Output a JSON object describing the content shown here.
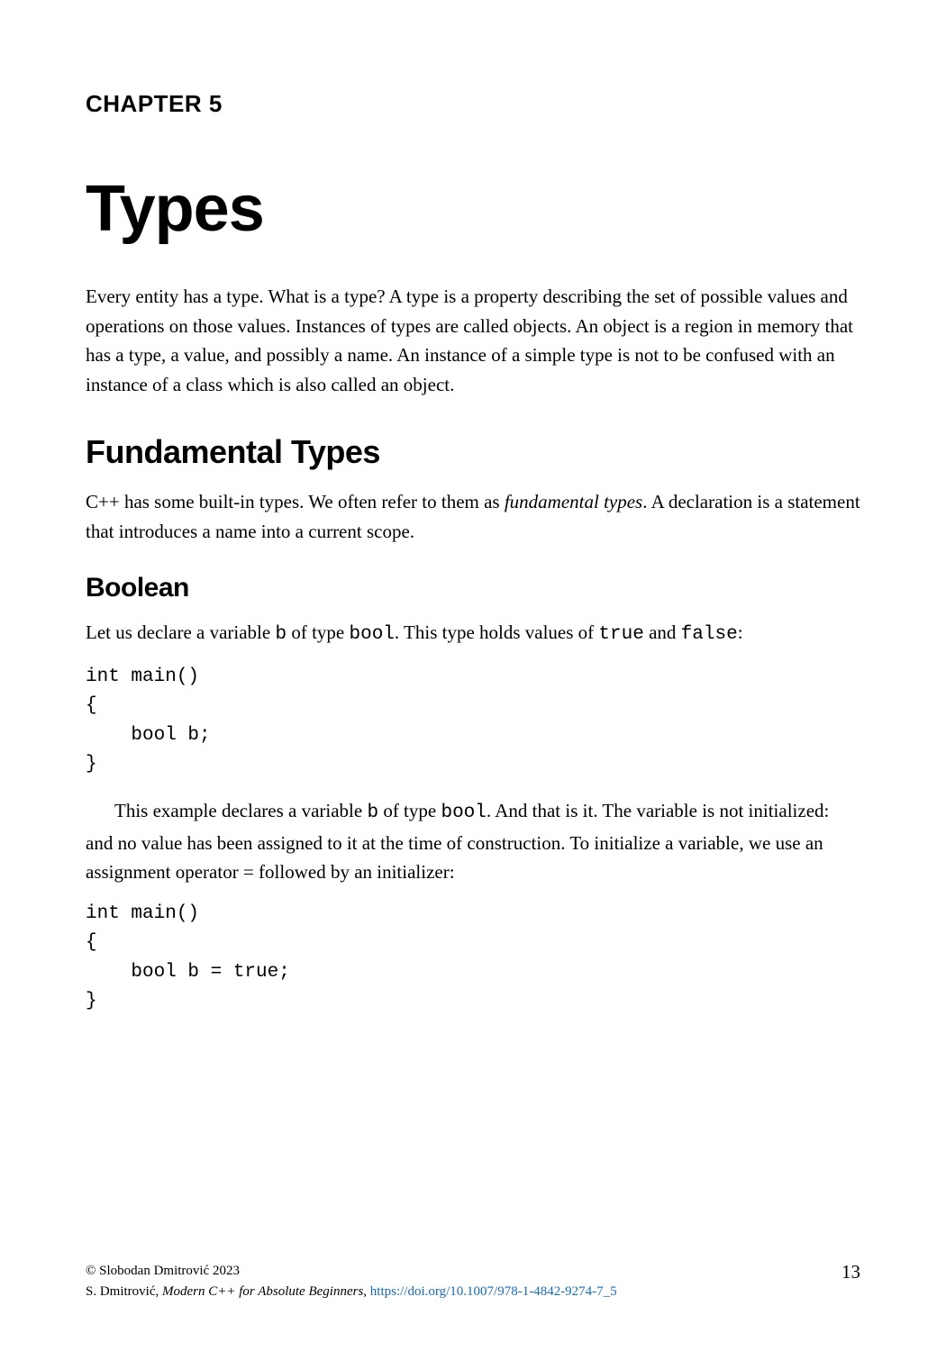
{
  "chapter_label": "CHAPTER 5",
  "chapter_title": "Types",
  "intro_paragraph": "Every entity has a type. What is a type? A type is a property describing the set of possible values and operations on those values. Instances of types are called objects. An object is a region in memory that has a type, a value, and possibly a name. An instance of a simple type is not to be confused with an instance of a class which is also called an object.",
  "section1": {
    "heading": "Fundamental Types",
    "text_before": "C++ has some built-in types. We often refer to them as ",
    "text_italic": "fundamental types",
    "text_after": ". A declaration is a statement that introduces a name into a current scope."
  },
  "subsection1": {
    "heading": "Boolean",
    "intro_parts": {
      "t1": "Let us declare a variable ",
      "c1": "b",
      "t2": " of type ",
      "c2": "bool",
      "t3": ". This type holds values of ",
      "c3": "true",
      "t4": " and ",
      "c4": "false",
      "t5": ":"
    },
    "code1": "int main()\n{\n    bool b;\n}",
    "para2_parts": {
      "t1": "This example declares a variable ",
      "c1": "b",
      "t2": " of type ",
      "c2": "bool",
      "t3": ". And that is it. The variable is not initialized: and no value has been assigned to it at the time of construction. To initialize a variable, we use an assignment operator = followed by an initializer:"
    },
    "code2": "int main()\n{\n    bool b = true;\n}"
  },
  "footer": {
    "copyright": "© Slobodan Dmitrović 2023",
    "citation_author": "S. Dmitrović, ",
    "citation_title": "Modern C++ for Absolute Beginners",
    "citation_sep": ", ",
    "doi": "https://doi.org/10.1007/978-1-4842-9274-7_5",
    "page_number": "13"
  },
  "colors": {
    "text": "#000000",
    "link": "#1a6bb3",
    "background": "#ffffff"
  }
}
